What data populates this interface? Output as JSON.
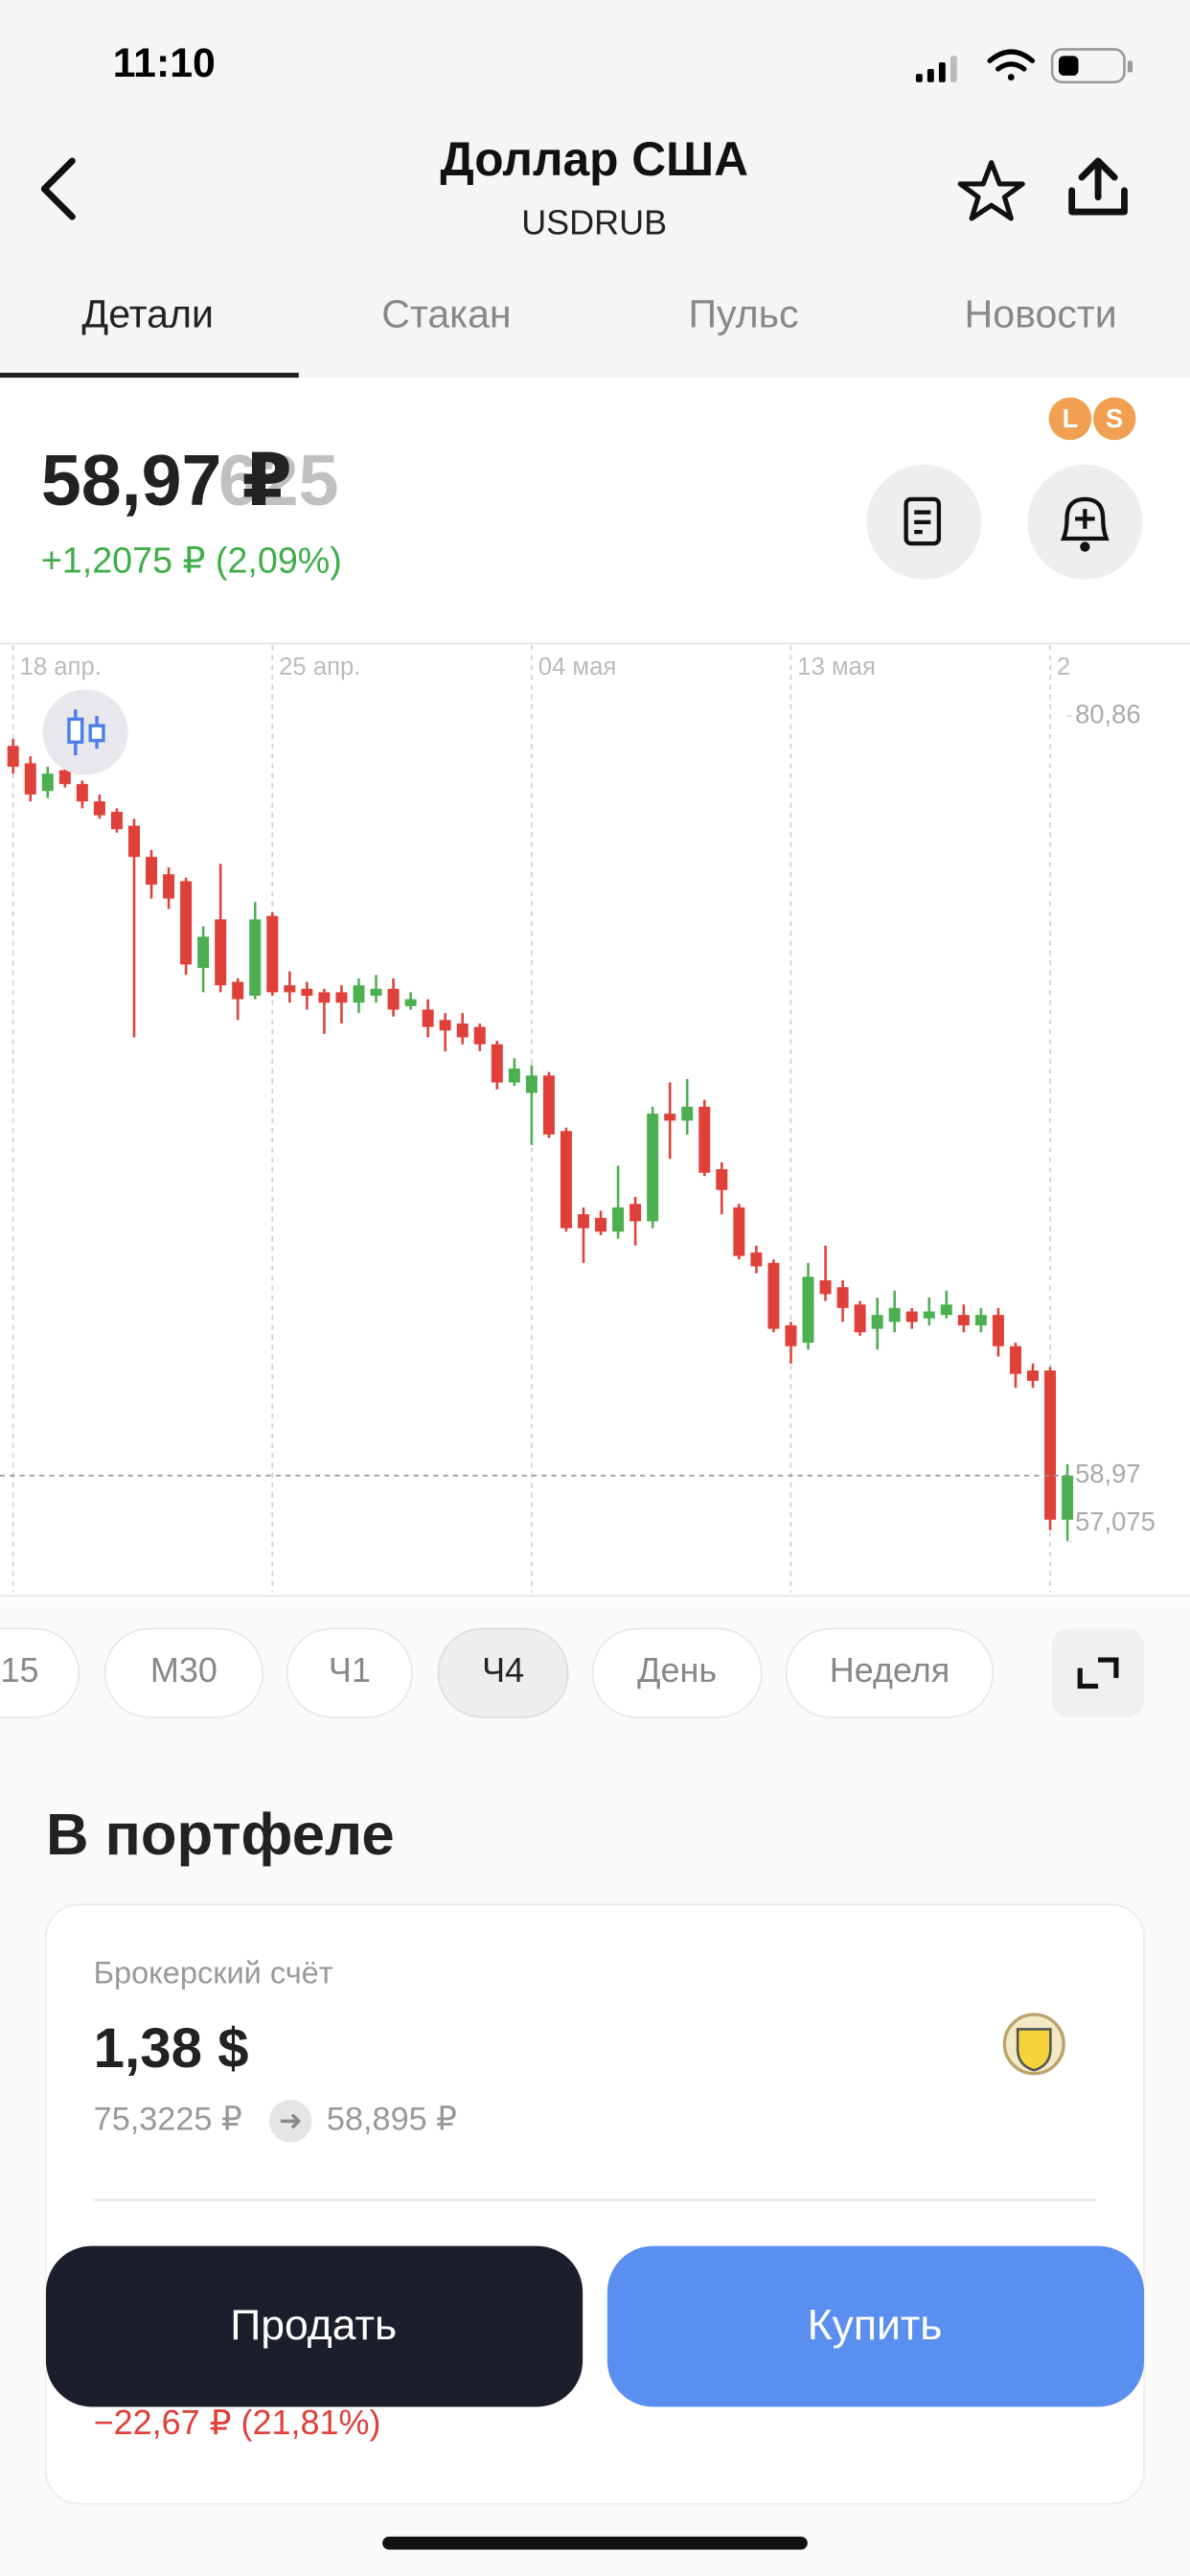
{
  "status_bar": {
    "time": "11:10"
  },
  "header": {
    "title": "Доллар США",
    "ticker": "USDRUB"
  },
  "tabs": [
    "Детали",
    "Стакан",
    "Пульс",
    "Новости"
  ],
  "selected_tab": 0,
  "badges": [
    "L",
    "S"
  ],
  "price": {
    "current": "58,97 ₽",
    "ghost": "625",
    "change": "+1,2075 ₽ (2,09%)"
  },
  "chart_data": {
    "type": "candlestick",
    "up_color": "#4caf50",
    "down_color": "#e0403a",
    "x": [
      null,
      null,
      null,
      null,
      null,
      null,
      null,
      null,
      null,
      null,
      null,
      null,
      null,
      null,
      null,
      null,
      null,
      null,
      null,
      null,
      null,
      null,
      null,
      null,
      null,
      null,
      null,
      null,
      null,
      null,
      null,
      null,
      null,
      null,
      null,
      null,
      null,
      null,
      null,
      null,
      null,
      null,
      null,
      null,
      null,
      null,
      null,
      null,
      null,
      null,
      null,
      null,
      null,
      null,
      null,
      null,
      null,
      null,
      null,
      null,
      null,
      null
    ],
    "open": [
      80.0,
      79.5,
      78.7,
      79.3,
      78.9,
      78.4,
      78.1,
      77.7,
      76.8,
      76.3,
      76.1,
      73.6,
      75.0,
      73.2,
      72.8,
      75.1,
      73.1,
      73.0,
      72.9,
      72.9,
      72.6,
      72.8,
      73.0,
      72.5,
      72.4,
      72.1,
      72.0,
      71.9,
      71.4,
      70.3,
      70.0,
      70.5,
      68.9,
      66.5,
      66.4,
      66.0,
      66.8,
      66.3,
      69.4,
      69.2,
      69.6,
      67.8,
      66.7,
      65.4,
      65.1,
      63.3,
      62.8,
      64.6,
      64.4,
      63.9,
      63.2,
      63.4,
      63.7,
      63.5,
      63.6,
      63.6,
      63.3,
      63.6,
      62.7,
      62.0,
      62.0,
      57.7
    ],
    "high": [
      80.2,
      79.7,
      79.4,
      79.5,
      79.0,
      78.6,
      78.2,
      77.9,
      77.0,
      76.5,
      76.2,
      74.8,
      76.6,
      73.3,
      75.5,
      75.2,
      73.5,
      73.2,
      73.0,
      73.1,
      73.3,
      73.4,
      73.3,
      72.9,
      72.7,
      72.3,
      72.3,
      72.0,
      71.5,
      71.0,
      70.8,
      70.6,
      69.0,
      66.7,
      66.6,
      67.9,
      67.0,
      69.6,
      70.3,
      70.4,
      69.8,
      68.0,
      66.8,
      65.6,
      65.2,
      63.4,
      65.1,
      65.6,
      64.6,
      64.0,
      64.1,
      64.3,
      63.8,
      64.1,
      64.3,
      63.9,
      63.8,
      63.8,
      62.8,
      62.2,
      62.1,
      59.3
    ],
    "low": [
      79.2,
      78.4,
      78.5,
      78.8,
      78.2,
      77.9,
      77.5,
      71.6,
      75.6,
      75.3,
      73.4,
      72.9,
      72.9,
      72.1,
      72.7,
      72.8,
      72.6,
      72.4,
      71.7,
      72.0,
      72.3,
      72.6,
      72.2,
      72.4,
      71.6,
      71.2,
      71.4,
      71.2,
      70.1,
      70.2,
      68.5,
      68.7,
      66.0,
      65.1,
      65.9,
      65.8,
      65.6,
      66.1,
      68.1,
      68.8,
      67.6,
      66.5,
      65.2,
      64.8,
      63.1,
      62.2,
      62.6,
      64.0,
      63.4,
      63.0,
      62.6,
      63.1,
      63.2,
      63.3,
      63.5,
      63.1,
      63.1,
      62.4,
      61.5,
      61.5,
      57.4,
      57.075
    ],
    "close": [
      79.4,
      78.6,
      79.2,
      78.9,
      78.4,
      78.0,
      77.6,
      76.8,
      76.0,
      75.6,
      73.7,
      74.5,
      73.1,
      72.7,
      75.0,
      72.9,
      72.9,
      72.8,
      72.6,
      72.6,
      73.1,
      73.0,
      72.4,
      72.7,
      71.9,
      71.8,
      71.6,
      71.4,
      70.3,
      70.7,
      70.5,
      68.8,
      66.1,
      66.1,
      66.0,
      66.7,
      66.3,
      69.4,
      69.2,
      69.6,
      67.7,
      67.2,
      65.3,
      65.0,
      63.2,
      62.7,
      64.7,
      64.2,
      63.8,
      63.1,
      63.6,
      63.8,
      63.4,
      63.7,
      63.9,
      63.3,
      63.6,
      62.7,
      61.9,
      61.7,
      57.7,
      58.97
    ],
    "ylim": [
      55.6,
      82.9
    ],
    "yticks": [
      {
        "value": 80.86,
        "label": "80,86"
      }
    ],
    "xticks": [
      {
        "value": 0,
        "label": "18 апр."
      },
      {
        "value": 15,
        "label": "25 апр."
      },
      {
        "value": 30,
        "label": "04 мая"
      },
      {
        "value": 45,
        "label": "13 мая"
      },
      {
        "value": 60,
        "label": "2"
      }
    ],
    "price_line": {
      "value": 58.97,
      "label": "58,97"
    },
    "low_marker": {
      "value": 57.075,
      "label": "57,075"
    },
    "grid": true
  },
  "intervals": [
    "15",
    "M30",
    "Ч1",
    "Ч4",
    "День",
    "Неделя"
  ],
  "selected_interval": 3,
  "portfolio": {
    "title": "В портфеле",
    "account": "Брокерский счёт",
    "amount": "1,38 $",
    "from": "75,3225 ₽",
    "to": "58,895 ₽",
    "pnl": "−22,67 ₽ (21,81%)"
  },
  "actions": [
    "Продать",
    "Купить"
  ]
}
